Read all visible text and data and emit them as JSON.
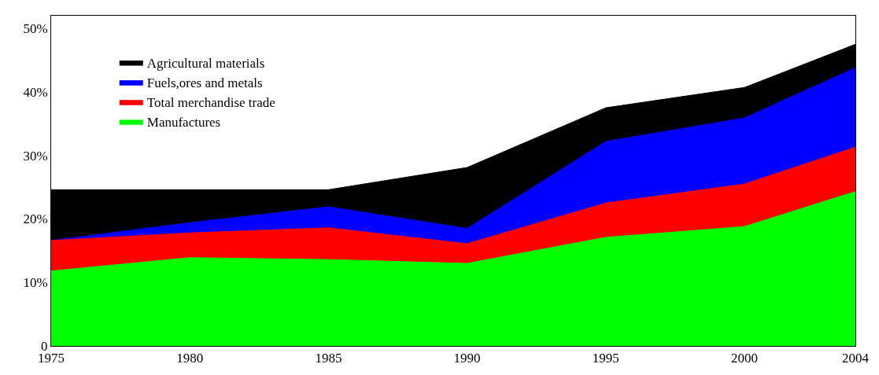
{
  "chart_data": {
    "type": "area",
    "x": [
      1975,
      1980,
      1985,
      1990,
      1995,
      2000,
      2004
    ],
    "series": [
      {
        "name": "Agricultural materials",
        "color": "#000000",
        "values": [
          24.6,
          24.6,
          24.6,
          28.1,
          37.5,
          40.7,
          47.5
        ]
      },
      {
        "name": "Fuels,ores and metals",
        "color": "#0000ff",
        "values": [
          16.6,
          19.4,
          21.9,
          18.5,
          32.2,
          35.9,
          43.8
        ]
      },
      {
        "name": "Total merchandise trade",
        "color": "#ff0000",
        "values": [
          16.6,
          17.8,
          18.6,
          16.1,
          22.5,
          25.5,
          31.3
        ]
      },
      {
        "name": "Manufactures",
        "color": "#00ff00",
        "values": [
          11.8,
          13.9,
          13.6,
          13.0,
          17.1,
          18.8,
          24.3
        ]
      }
    ],
    "xlim": [
      1975,
      2004
    ],
    "xticks": [
      1975,
      1980,
      1985,
      1990,
      1995,
      2000,
      2004
    ],
    "ylim": [
      0,
      52
    ],
    "yticks": [
      {
        "value": 0,
        "label": "0"
      },
      {
        "value": 10,
        "label": "10%"
      },
      {
        "value": 20,
        "label": "20%"
      },
      {
        "value": 30,
        "label": "30%"
      },
      {
        "value": 40,
        "label": "40%"
      },
      {
        "value": 50,
        "label": "50%"
      }
    ],
    "legend": "top left"
  }
}
